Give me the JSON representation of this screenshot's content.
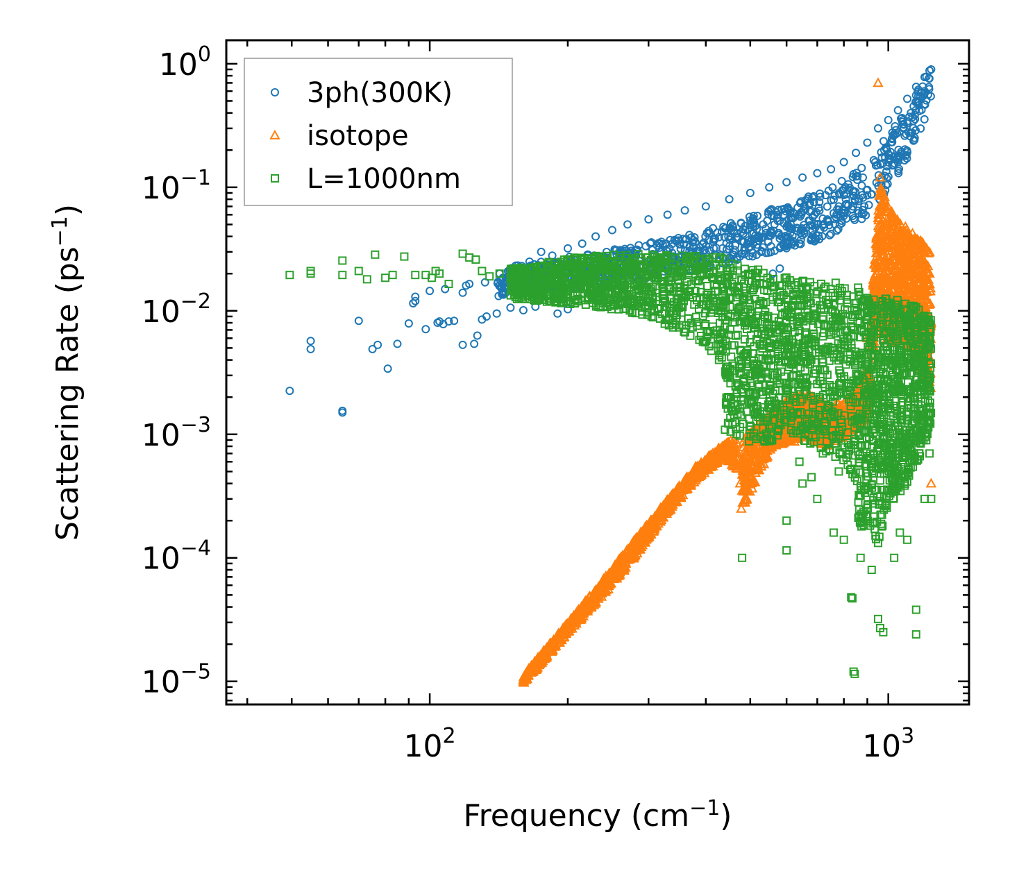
{
  "chart_data": {
    "type": "scatter",
    "x_scale": "log",
    "y_scale": "log",
    "xlim": [
      36,
      1500
    ],
    "ylim": [
      6.5e-06,
      1.55
    ],
    "xlabel": "Frequency",
    "xlabel_unit": "(cm",
    "xlabel_sup": "−1",
    "xlabel_close": ")",
    "ylabel": "Scattering Rate",
    "ylabel_unit": "(ps",
    "ylabel_sup": "−1",
    "ylabel_close": ")",
    "x_ticks": [
      {
        "value": 100,
        "base": "10",
        "exp": "2"
      },
      {
        "value": 1000,
        "base": "10",
        "exp": "3"
      }
    ],
    "y_ticks": [
      {
        "value": 1,
        "base": "10",
        "exp": "0"
      },
      {
        "value": 0.1,
        "base": "10",
        "exp": "−1"
      },
      {
        "value": 0.01,
        "base": "10",
        "exp": "−2"
      },
      {
        "value": 0.001,
        "base": "10",
        "exp": "−3"
      },
      {
        "value": 0.0001,
        "base": "10",
        "exp": "−4"
      },
      {
        "value": 1e-05,
        "base": "10",
        "exp": "−5"
      }
    ],
    "legend_position": "top-left",
    "series": [
      {
        "name": "3ph(300K)",
        "marker": "circle",
        "color": "#1f77b4",
        "points": [
          [
            49.5,
            0.00225
          ],
          [
            55,
            0.0049
          ],
          [
            55,
            0.0057
          ],
          [
            64.5,
            0.0015
          ],
          [
            64.5,
            0.00155
          ],
          [
            70,
            0.0083
          ],
          [
            75,
            0.0049
          ],
          [
            77,
            0.0053
          ],
          [
            81,
            0.0034
          ],
          [
            85,
            0.0054
          ],
          [
            90,
            0.0079
          ],
          [
            92,
            0.0115
          ],
          [
            93,
            0.013
          ],
          [
            98,
            0.0071
          ],
          [
            104,
            0.008
          ],
          [
            105,
            0.0082
          ],
          [
            107,
            0.0078
          ],
          [
            110,
            0.0082
          ],
          [
            113,
            0.0083
          ],
          [
            118,
            0.0053
          ],
          [
            120,
            0.016
          ],
          [
            125,
            0.0054
          ],
          [
            127,
            0.0063
          ],
          [
            130,
            0.0085
          ],
          [
            133,
            0.009
          ],
          [
            140,
            0.0095
          ],
          [
            150,
            0.0106
          ],
          [
            160,
            0.0101
          ],
          [
            170,
            0.0108
          ],
          [
            190,
            0.0095
          ],
          [
            200,
            0.0103
          ],
          [
            93,
            0.012
          ],
          [
            100,
            0.0145
          ],
          [
            108,
            0.015
          ],
          [
            118,
            0.014
          ],
          [
            122,
            0.0165
          ],
          [
            132,
            0.017
          ],
          [
            142,
            0.02
          ],
          [
            150,
            0.022
          ],
          [
            165,
            0.025
          ],
          [
            175,
            0.03
          ],
          [
            185,
            0.028
          ],
          [
            200,
            0.032
          ],
          [
            215,
            0.035
          ],
          [
            230,
            0.04
          ],
          [
            250,
            0.045
          ],
          [
            270,
            0.05
          ],
          [
            300,
            0.055
          ],
          [
            330,
            0.06
          ],
          [
            360,
            0.065
          ],
          [
            400,
            0.07
          ],
          [
            450,
            0.08
          ],
          [
            500,
            0.09
          ],
          [
            550,
            0.1
          ],
          [
            600,
            0.11
          ],
          [
            650,
            0.12
          ],
          [
            700,
            0.13
          ],
          [
            750,
            0.14
          ],
          [
            800,
            0.16
          ],
          [
            850,
            0.19
          ],
          [
            900,
            0.23
          ],
          [
            950,
            0.3
          ],
          [
            1000,
            0.35
          ],
          [
            1050,
            0.42
          ],
          [
            1100,
            0.52
          ],
          [
            1150,
            0.65
          ],
          [
            1200,
            0.78
          ],
          [
            1230,
            0.88
          ],
          [
            1240,
            0.9
          ],
          [
            560,
            0.02
          ],
          [
            580,
            0.022
          ],
          [
            600,
            0.035
          ],
          [
            700,
            0.05
          ],
          [
            780,
            0.07
          ],
          [
            820,
            0.095
          ],
          [
            880,
            0.12
          ],
          [
            940,
            0.15
          ],
          [
            980,
            0.2
          ],
          [
            1020,
            0.25
          ],
          [
            1080,
            0.3
          ],
          [
            1120,
            0.4
          ],
          [
            1160,
            0.5
          ],
          [
            1200,
            0.6
          ]
        ],
        "bands": [
          {
            "x": [
              140,
              260,
              400,
              520,
              620,
              720,
              820,
              920,
              1000,
              1100,
              1180,
              1240
            ],
            "y_low": [
              0.013,
              0.017,
              0.022,
              0.028,
              0.033,
              0.038,
              0.048,
              0.06,
              0.1,
              0.16,
              0.3,
              0.5
            ],
            "y_high": [
              0.022,
              0.032,
              0.045,
              0.062,
              0.075,
              0.095,
              0.12,
              0.17,
              0.27,
              0.45,
              0.7,
              0.92
            ]
          }
        ]
      },
      {
        "name": "isotope",
        "marker": "triangle",
        "color": "#ff7f0e",
        "points": [
          [
            160,
            1e-05
          ],
          [
            165,
            1.2e-05
          ],
          [
            180,
            1.8e-05
          ],
          [
            200,
            2.7e-05
          ],
          [
            230,
            5e-05
          ],
          [
            260,
            8.5e-05
          ],
          [
            290,
            0.00014
          ],
          [
            320,
            0.00023
          ],
          [
            350,
            0.00035
          ],
          [
            380,
            0.0005
          ],
          [
            410,
            0.00065
          ],
          [
            440,
            0.0008
          ],
          [
            460,
            0.0009
          ],
          [
            470,
            0.0007
          ],
          [
            475,
            0.0004
          ],
          [
            478,
            0.00025
          ],
          [
            480,
            0.00035
          ],
          [
            500,
            0.00045
          ],
          [
            510,
            0.0007
          ],
          [
            520,
            0.0011
          ],
          [
            560,
            0.0014
          ],
          [
            600,
            0.0019
          ],
          [
            650,
            0.0017
          ],
          [
            700,
            0.0013
          ],
          [
            750,
            0.0012
          ],
          [
            800,
            0.0015
          ],
          [
            850,
            0.0019
          ],
          [
            880,
            0.003
          ],
          [
            900,
            0.006
          ],
          [
            920,
            0.01
          ],
          [
            940,
            0.0135
          ],
          [
            950,
            0.7
          ],
          [
            960,
            0.12
          ],
          [
            980,
            0.08
          ],
          [
            1000,
            0.05
          ],
          [
            1050,
            0.035
          ],
          [
            1100,
            0.028
          ],
          [
            1150,
            0.015
          ],
          [
            1200,
            0.03
          ],
          [
            1230,
            0.02
          ],
          [
            1240,
            0.008
          ],
          [
            1240,
            0.0004
          ]
        ],
        "bands": [
          {
            "x": [
              160,
              200,
              260,
              320,
              380,
              440,
              470
            ],
            "y_low": [
              9.5e-06,
              2.4e-05,
              7e-05,
              0.0002,
              0.00042,
              0.00065,
              0.0005
            ],
            "y_high": [
              1.15e-05,
              3e-05,
              0.0001,
              0.00026,
              0.00055,
              0.00085,
              0.00095
            ]
          },
          {
            "x": [
              480,
              560,
              650,
              750,
              850,
              920
            ],
            "y_low": [
              0.00025,
              0.0008,
              0.0009,
              0.0008,
              0.0011,
              0.0015
            ],
            "y_high": [
              0.0009,
              0.0016,
              0.0022,
              0.0017,
              0.0022,
              0.004
            ]
          },
          {
            "x": [
              920,
              960,
              1000,
              1080,
              1160,
              1240
            ],
            "y_low": [
              0.004,
              0.008,
              0.005,
              0.006,
              0.004,
              0.002
            ],
            "y_high": [
              0.012,
              0.11,
              0.07,
              0.05,
              0.04,
              0.03
            ]
          }
        ]
      },
      {
        "name": "L=1000nm",
        "marker": "square",
        "color": "#2ca02c",
        "points": [
          [
            49.5,
            0.0195
          ],
          [
            55,
            0.02
          ],
          [
            55,
            0.021
          ],
          [
            64.5,
            0.0195
          ],
          [
            64.5,
            0.0255
          ],
          [
            70,
            0.021
          ],
          [
            73,
            0.018
          ],
          [
            76,
            0.0285
          ],
          [
            80,
            0.0185
          ],
          [
            83,
            0.0195
          ],
          [
            88,
            0.0275
          ],
          [
            93,
            0.0195
          ],
          [
            98,
            0.0195
          ],
          [
            101,
            0.0185
          ],
          [
            103,
            0.021
          ],
          [
            105,
            0.02
          ],
          [
            110,
            0.0165
          ],
          [
            118,
            0.029
          ],
          [
            122,
            0.027
          ],
          [
            126,
            0.026
          ],
          [
            130,
            0.021
          ],
          [
            135,
            0.019
          ],
          [
            142,
            0.02
          ],
          [
            150,
            0.0185
          ],
          [
            160,
            0.018
          ],
          [
            175,
            0.019
          ],
          [
            480,
            0.0001
          ],
          [
            600,
            0.000115
          ],
          [
            600,
            0.0002
          ],
          [
            650,
            0.0004
          ],
          [
            700,
            0.0003
          ],
          [
            760,
            0.00016
          ],
          [
            800,
            0.00014
          ],
          [
            830,
            4.8e-05
          ],
          [
            835,
            4.7e-05
          ],
          [
            840,
            1.2e-05
          ],
          [
            845,
            1.15e-05
          ],
          [
            870,
            0.0001
          ],
          [
            920,
            8e-05
          ],
          [
            950,
            3.2e-05
          ],
          [
            960,
            2.7e-05
          ],
          [
            975,
            2.5e-05
          ],
          [
            1030,
            0.0001
          ],
          [
            1060,
            0.00016
          ],
          [
            1100,
            0.00014
          ],
          [
            1150,
            3.8e-05
          ],
          [
            1150,
            2.4e-05
          ],
          [
            1200,
            0.0003
          ],
          [
            1230,
            0.0007
          ],
          [
            1240,
            0.0003
          ],
          [
            640,
            0.0006
          ],
          [
            680,
            0.00045
          ],
          [
            720,
            0.0007
          ],
          [
            780,
            0.0005
          ]
        ],
        "bands": [
          {
            "x": [
              150,
              220,
              300,
              380,
              440
            ],
            "y_low": [
              0.0125,
              0.011,
              0.009,
              0.006,
              0.0035
            ],
            "y_high": [
              0.022,
              0.028,
              0.029,
              0.028,
              0.027
            ]
          },
          {
            "x": [
              440,
              520,
              600,
              700,
              800,
              860
            ],
            "y_low": [
              0.001,
              0.0008,
              0.001,
              0.0008,
              0.0006,
              0.0004
            ],
            "y_high": [
              0.026,
              0.022,
              0.019,
              0.018,
              0.017,
              0.016
            ]
          },
          {
            "x": [
              860,
              900,
              950,
              1000,
              1100,
              1200,
              1240
            ],
            "y_low": [
              0.00015,
              0.0002,
              0.00013,
              0.00025,
              0.0004,
              0.0008,
              0.0012
            ],
            "y_high": [
              0.015,
              0.013,
              0.012,
              0.013,
              0.012,
              0.01,
              0.009
            ]
          }
        ]
      }
    ]
  }
}
